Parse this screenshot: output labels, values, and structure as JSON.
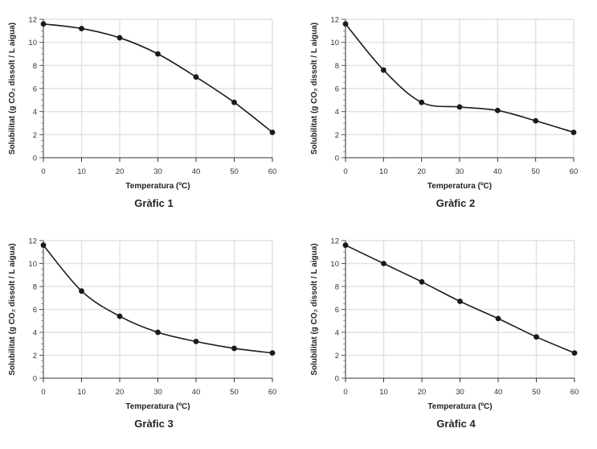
{
  "chart_data": [
    {
      "type": "line",
      "title": "Gràfic 1",
      "xlabel": "Temperatura (ºC)",
      "ylabel": "Solubilitat (g CO₂ dissolt / L aigua)",
      "x": [
        0,
        10,
        20,
        30,
        40,
        50,
        60
      ],
      "y": [
        11.6,
        11.2,
        10.4,
        9.0,
        7.0,
        4.8,
        2.2
      ],
      "xlim": [
        0,
        60
      ],
      "ylim": [
        0,
        12
      ],
      "xticks": [
        "0",
        "10",
        "20",
        "30",
        "40",
        "50",
        "60"
      ],
      "yticks": [
        "0",
        "2",
        "4",
        "6",
        "8",
        "10",
        "12"
      ],
      "grid": true,
      "smooth": true
    },
    {
      "type": "line",
      "title": "Gràfic 2",
      "xlabel": "Temperatura (ºC)",
      "ylabel": "Solubilitat (g CO₂ dissolt / L aigua)",
      "x": [
        0,
        10,
        20,
        30,
        40,
        50,
        60
      ],
      "y": [
        11.6,
        7.6,
        4.8,
        4.4,
        4.1,
        3.2,
        2.2
      ],
      "xlim": [
        0,
        60
      ],
      "ylim": [
        0,
        12
      ],
      "xticks": [
        "0",
        "10",
        "20",
        "30",
        "40",
        "50",
        "60"
      ],
      "yticks": [
        "0",
        "2",
        "4",
        "6",
        "8",
        "10",
        "12"
      ],
      "grid": true,
      "smooth": true
    },
    {
      "type": "line",
      "title": "Gràfic 3",
      "xlabel": "Temperatura (ºC)",
      "ylabel": "Solubilitat (g CO₂ dissolt / L aigua)",
      "x": [
        0,
        10,
        20,
        30,
        40,
        50,
        60
      ],
      "y": [
        11.6,
        7.6,
        5.4,
        4.0,
        3.2,
        2.6,
        2.2
      ],
      "xlim": [
        0,
        60
      ],
      "ylim": [
        0,
        12
      ],
      "xticks": [
        "0",
        "10",
        "20",
        "30",
        "40",
        "50",
        "60"
      ],
      "yticks": [
        "0",
        "2",
        "4",
        "6",
        "8",
        "10",
        "12"
      ],
      "grid": true,
      "smooth": true
    },
    {
      "type": "line",
      "title": "Gràfic 4",
      "xlabel": "Temperatura (ºC)",
      "ylabel": "Solubilitat (g CO₂ dissolt / L aigua)",
      "x": [
        0,
        10,
        20,
        30,
        40,
        50,
        60
      ],
      "y": [
        11.6,
        10.0,
        8.4,
        6.7,
        5.2,
        3.6,
        2.2
      ],
      "xlim": [
        0,
        60
      ],
      "ylim": [
        0,
        12
      ],
      "xticks": [
        "0",
        "10",
        "20",
        "30",
        "40",
        "50",
        "60"
      ],
      "yticks": [
        "0",
        "2",
        "4",
        "6",
        "8",
        "10",
        "12"
      ],
      "grid": true,
      "smooth": true
    }
  ]
}
